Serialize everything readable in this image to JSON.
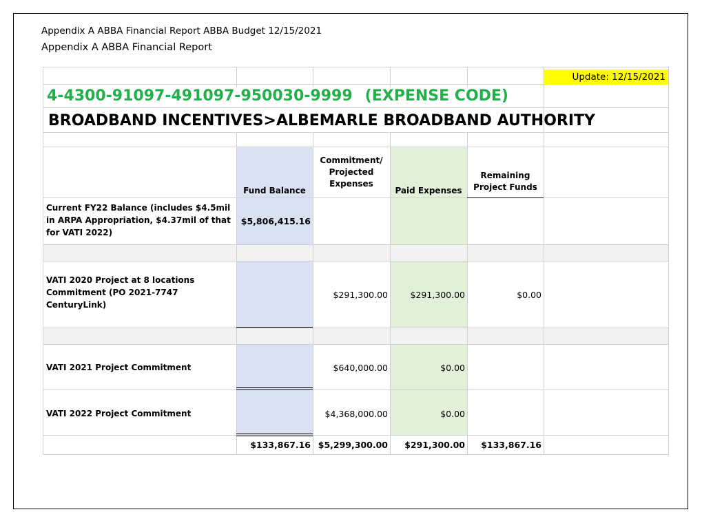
{
  "header": {
    "line1": "Appendix A  ABBA Financial Report   ABBA Budget 12/15/2021",
    "line2": "Appendix A ABBA Financial Report"
  },
  "sheet": {
    "update_label": "Update: 12/15/2021",
    "expense_code": "4-4300-91097-491097-950030-9999",
    "expense_code_suffix": "(EXPENSE CODE)",
    "title": "BROADBAND INCENTIVES>ALBEMARLE BROADBAND AUTHORITY",
    "columns": {
      "fund_balance": "Fund Balance",
      "commitment": [
        "Commitment/",
        "Projected",
        "Expenses"
      ],
      "paid": "Paid Expenses",
      "remaining": [
        "Remaining",
        "Project Funds"
      ]
    },
    "rows": [
      {
        "label": [
          "Current FY22 Balance (includes $4.5mil",
          "in ARPA Appropriation, $4.37mil of that",
          "for VATI 2022)"
        ],
        "fund_balance": "$5,806,415.16"
      },
      {
        "label": [
          "VATI 2020 Project at 8 locations",
          "Commitment (PO 2021-7747",
          "CenturyLink)"
        ],
        "commitment": "$291,300.00",
        "paid": "$291,300.00",
        "remaining": "$0.00"
      },
      {
        "label": [
          "VATI 2021 Project Commitment"
        ],
        "commitment": "$640,000.00",
        "paid": "$0.00"
      },
      {
        "label": [
          "VATI 2022 Project Commitment"
        ],
        "commitment": "$4,368,000.00",
        "paid": "$0.00"
      }
    ],
    "totals": {
      "fund_balance": "$133,867.16",
      "commitment": "$5,299,300.00",
      "paid": "$291,300.00",
      "remaining": "$133,867.16"
    },
    "colors": {
      "fund_balance_fill": "#dae1f3",
      "paid_fill": "#e2efd9",
      "gray_row_fill": "#f2f2f2",
      "code_color": "#22b04a",
      "update_fill": "#ffff00"
    }
  }
}
